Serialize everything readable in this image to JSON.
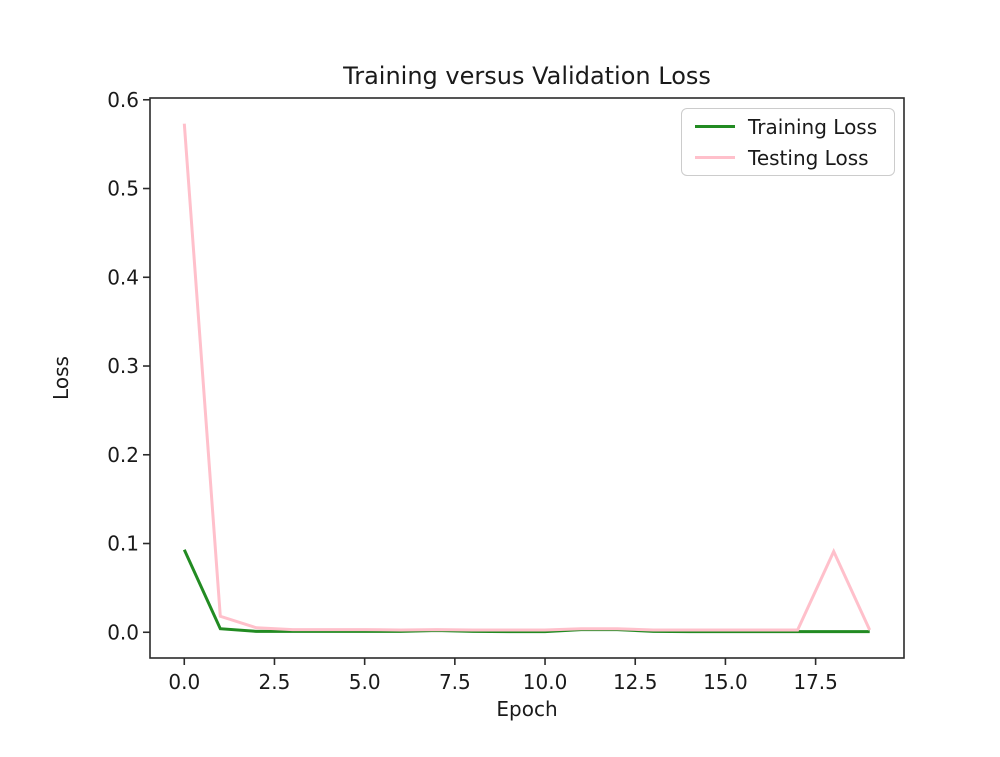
{
  "figure": {
    "background": "#ffffff",
    "text_color": "#1a1a1a",
    "spine_color": "#2b2b2b",
    "legend_border_color": "#cccccc"
  },
  "chart_data": {
    "type": "line",
    "title": "Training versus Validation Loss",
    "xlabel": "Epoch",
    "ylabel": "Loss",
    "grid": false,
    "legend_position": "top-right",
    "x": [
      0,
      1,
      2,
      3,
      4,
      5,
      6,
      7,
      8,
      9,
      10,
      11,
      12,
      13,
      14,
      15,
      16,
      17,
      18,
      19
    ],
    "series": [
      {
        "name": "Training Loss",
        "color": "#228B22",
        "values": [
          0.093,
          0.004,
          0.001,
          0.001,
          0.001,
          0.001,
          0.001,
          0.002,
          0.001,
          0.0008,
          0.0008,
          0.003,
          0.003,
          0.001,
          0.0008,
          0.0008,
          0.0008,
          0.0008,
          0.0008,
          0.0008
        ]
      },
      {
        "name": "Testing Loss",
        "color": "#FFC0CB",
        "values": [
          0.573,
          0.018,
          0.005,
          0.003,
          0.003,
          0.003,
          0.0025,
          0.003,
          0.0025,
          0.0025,
          0.0025,
          0.004,
          0.004,
          0.0025,
          0.0025,
          0.0025,
          0.0025,
          0.0025,
          0.091,
          0.0025
        ]
      }
    ],
    "x_ticks": [
      0,
      2.5,
      5,
      7.5,
      10,
      12.5,
      15,
      17.5
    ],
    "x_tick_labels": [
      "0.0",
      "2.5",
      "5.0",
      "7.5",
      "10.0",
      "12.5",
      "15.0",
      "17.5"
    ],
    "y_ticks": [
      0,
      0.1,
      0.2,
      0.3,
      0.4,
      0.5,
      0.6
    ],
    "y_tick_labels": [
      "0.0",
      "0.1",
      "0.2",
      "0.3",
      "0.4",
      "0.5",
      "0.6"
    ],
    "xlim": [
      -0.95,
      19.95
    ],
    "ylim": [
      -0.029,
      0.602
    ]
  }
}
